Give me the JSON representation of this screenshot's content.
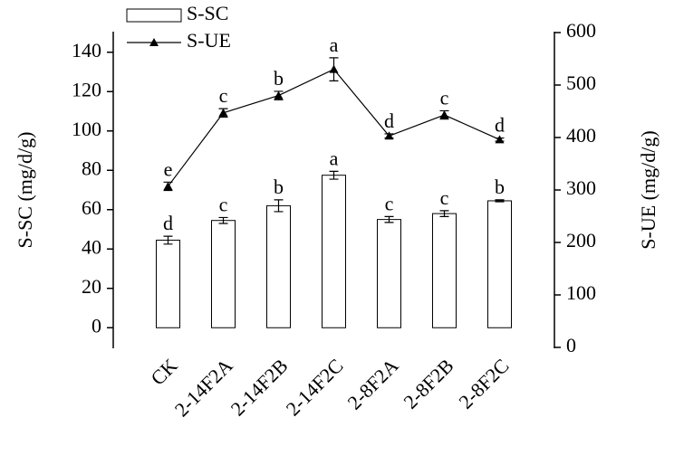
{
  "chart_data": {
    "type": "bar",
    "categories": [
      "CK",
      "2-14F2A",
      "2-14F2B",
      "2-14F2C",
      "2-8F2A",
      "2-8F2B",
      "2-8F2C"
    ],
    "ylabel": "S-SC (mg/d/g)",
    "y2label": "S-UE (mg/d/g)",
    "ylim": [
      -10,
      150
    ],
    "yticks": [
      0,
      20,
      40,
      60,
      80,
      100,
      120,
      140
    ],
    "y2lim": [
      0,
      600
    ],
    "y2ticks": [
      0,
      100,
      200,
      300,
      400,
      500,
      600
    ],
    "series": [
      {
        "name": "S-SC",
        "type": "bar",
        "color": "#ffffff",
        "values": [
          44.5,
          54.5,
          62,
          77.5,
          55,
          58,
          64.5
        ],
        "errors": [
          2,
          1.5,
          3,
          2,
          1.5,
          1.5,
          0.5
        ],
        "annotations": [
          "d",
          "c",
          "b",
          "a",
          "c",
          "c",
          "b"
        ]
      },
      {
        "name": "S-UE",
        "type": "line",
        "axis": "y2",
        "color": "#000000",
        "values": [
          307,
          447,
          480,
          530,
          403,
          443,
          396
        ],
        "errors": [
          8,
          8,
          8,
          22,
          4,
          8,
          3
        ],
        "annotations": [
          "e",
          "c",
          "b",
          "a",
          "d",
          "c",
          "d"
        ]
      }
    ]
  }
}
